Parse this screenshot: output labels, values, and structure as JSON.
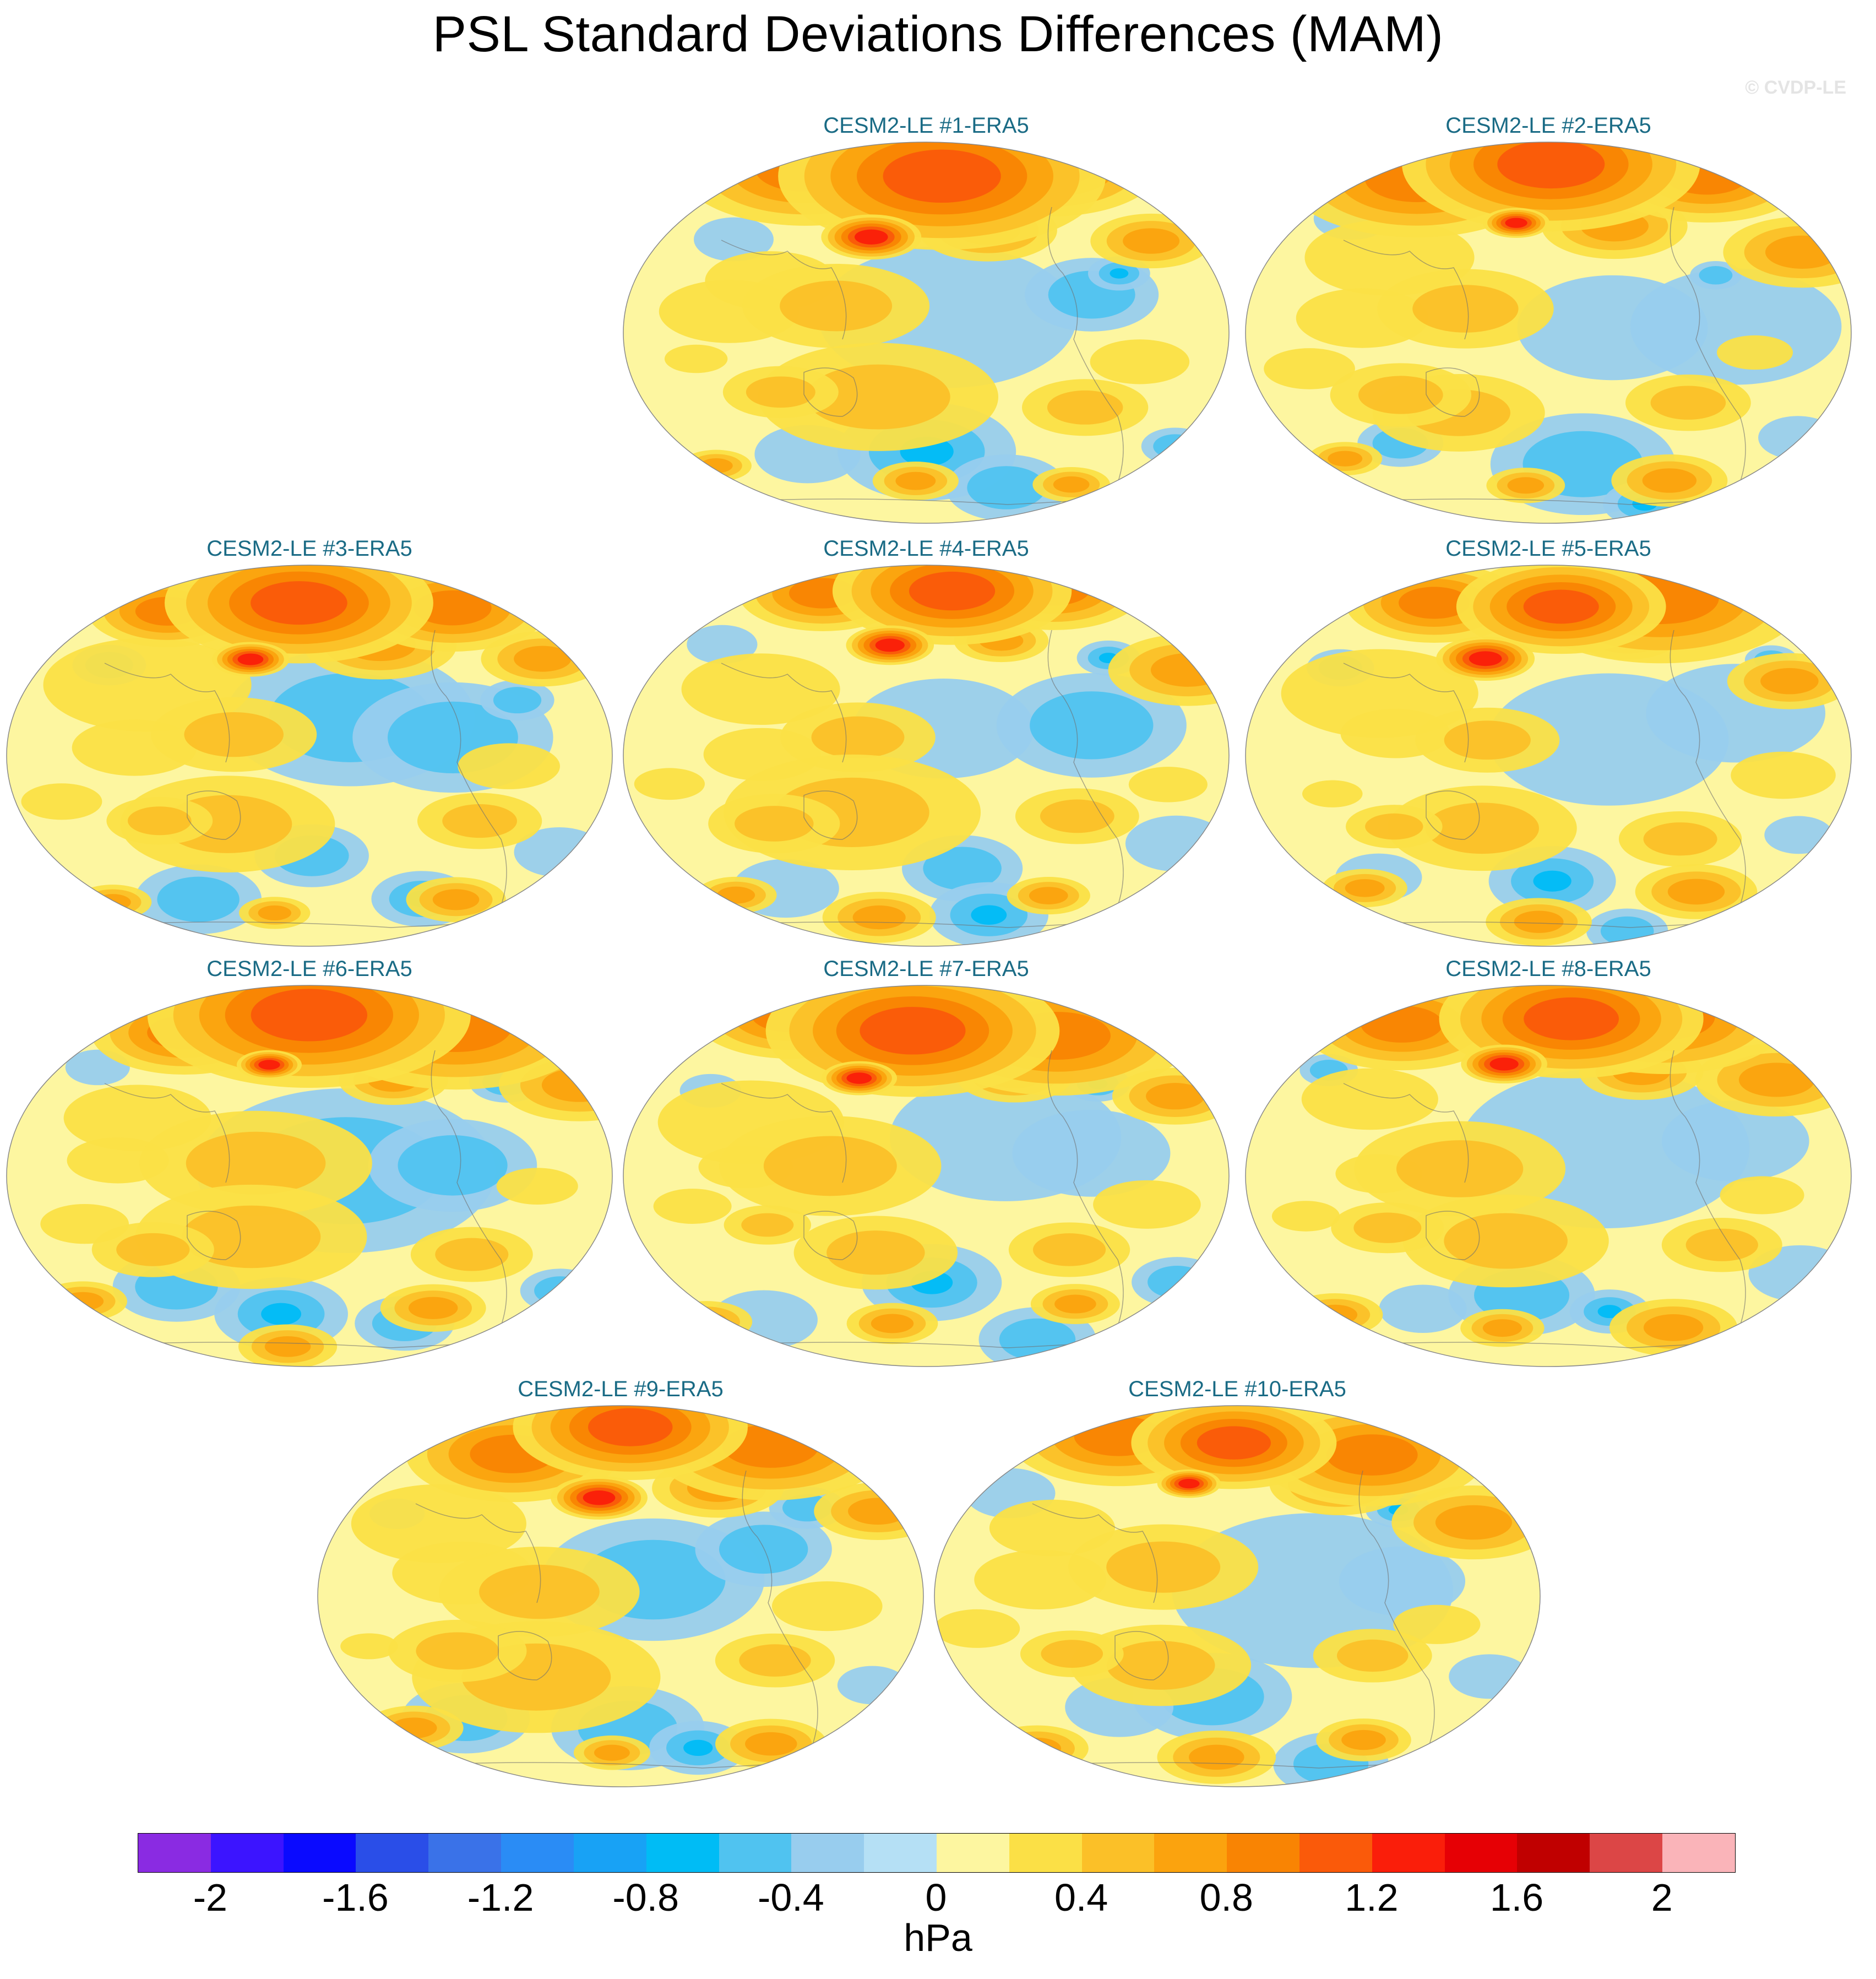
{
  "title": "PSL Standard Deviations Differences (MAM)",
  "watermark": "© CVDP-LE",
  "panels": [
    {
      "title": "CESM2-LE #1-ERA5"
    },
    {
      "title": "CESM2-LE #2-ERA5"
    },
    {
      "title": "CESM2-LE #3-ERA5"
    },
    {
      "title": "CESM2-LE #4-ERA5"
    },
    {
      "title": "CESM2-LE #5-ERA5"
    },
    {
      "title": "CESM2-LE #6-ERA5"
    },
    {
      "title": "CESM2-LE #7-ERA5"
    },
    {
      "title": "CESM2-LE #8-ERA5"
    },
    {
      "title": "CESM2-LE #9-ERA5"
    },
    {
      "title": "CESM2-LE #10-ERA5"
    }
  ],
  "colorbar": {
    "colors": [
      "#8a2be2",
      "#3c14ff",
      "#0a0aff",
      "#2a4ee8",
      "#3a72e8",
      "#2a8cf5",
      "#18a2f5",
      "#00bcf5",
      "#50c3f0",
      "#98cdee",
      "#b5e0f5",
      "#fdf6a0",
      "#fbe046",
      "#fbc028",
      "#fba30e",
      "#f98403",
      "#fa5a0a",
      "#fa1e0a",
      "#e60005",
      "#c00000",
      "#dc4646",
      "#fab4b9"
    ],
    "labels": [
      "-2",
      "-1.6",
      "-1.2",
      "-0.8",
      "-0.4",
      "0",
      "0.4",
      "0.8",
      "1.2",
      "1.6",
      "2"
    ],
    "units": "hPa"
  }
}
